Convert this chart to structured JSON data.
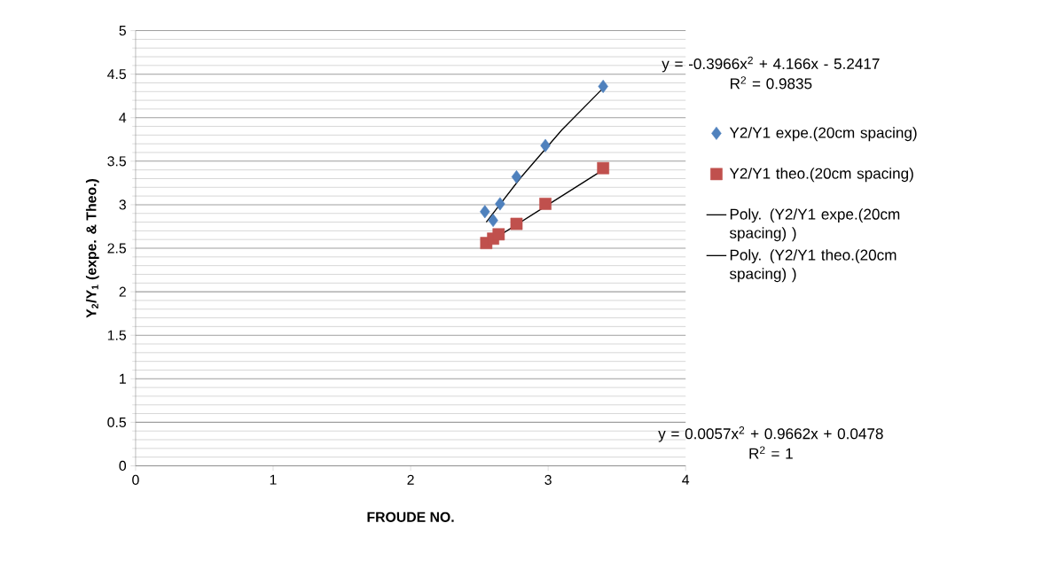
{
  "chart_data": {
    "type": "scatter",
    "xlabel": "FROUDE NO.",
    "ylabel": "Y$_{2}$/Y$_{1}$ (expe. & Theo.)",
    "xlim": [
      0,
      4
    ],
    "xticks": [
      0,
      1,
      2,
      3,
      4
    ],
    "ylim": [
      0,
      5
    ],
    "yticks": [
      0,
      0.5,
      1,
      1.5,
      2,
      2.5,
      3,
      3.5,
      4,
      4.5,
      5
    ],
    "grid": "y",
    "legend": "right",
    "series": [
      {
        "name": "Y2/Y1 expe.(20cm spacing)",
        "type": "scatter",
        "marker": "diamond",
        "color": "#4f81bd",
        "x": [
          2.54,
          2.6,
          2.65,
          2.77,
          2.98,
          3.4
        ],
        "values": [
          2.92,
          2.82,
          3.01,
          3.32,
          3.68,
          4.36
        ]
      },
      {
        "name": "Y2/Y1 theo.(20cm spacing)",
        "type": "scatter",
        "marker": "square",
        "color": "#c0504d",
        "x": [
          2.55,
          2.6,
          2.64,
          2.77,
          2.98,
          3.4
        ],
        "values": [
          2.56,
          2.61,
          2.66,
          2.78,
          3.01,
          3.42
        ]
      },
      {
        "name": "Poly. (Y2/Y1 expe.(20cm spacing) )",
        "type": "line",
        "marker": "none",
        "color": "#000000",
        "x": [
          2.55,
          2.8,
          3.1,
          3.4
        ],
        "values": [
          2.8,
          3.31,
          3.86,
          4.34
        ]
      },
      {
        "name": "Poly. (Y2/Y1 theo.(20cm spacing) )",
        "type": "line",
        "marker": "none",
        "color": "#000000",
        "x": [
          2.55,
          3.0,
          3.4
        ],
        "values": [
          2.55,
          3.0,
          3.4
        ]
      }
    ],
    "annotations": [
      "y = -0.3966x$^{2}$ + 4.166x - 5.2417\nR$^{2}$ = 0.9835",
      "y = 0.0057x$^{2}$ + 0.9662x + 0.0478\nR$^{2}$ = 1"
    ]
  }
}
